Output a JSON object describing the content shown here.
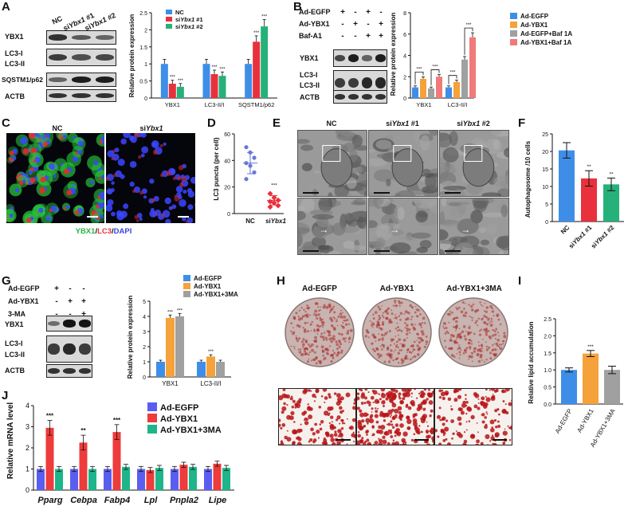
{
  "panels": {
    "A": {
      "label": "A",
      "lanes": [
        "NC",
        "siYbx1 #1",
        "siYbx1 #2"
      ],
      "lane_base": "si",
      "lane_gene": "Ybx1",
      "lane_suffix": [
        " #1",
        " #2"
      ],
      "proteins": [
        "YBX1",
        "LC3-I",
        "LC3-II",
        "SQSTM1/p62",
        "ACTB"
      ],
      "chart_data": {
        "type": "bar",
        "ylabel": "Relative protein expression",
        "ylim": [
          0,
          2.5
        ],
        "yticks": [
          0.0,
          0.5,
          1.0,
          1.5,
          2.0,
          2.5
        ],
        "categories": [
          "YBX1",
          "LC3-II/I",
          "SQSTM1/p62"
        ],
        "series": [
          {
            "name": "NC",
            "color": "#3e8ee8",
            "values": [
              1.0,
              1.0,
              1.0
            ]
          },
          {
            "name": "siYbx1 #1",
            "color": "#e8313c",
            "values": [
              0.42,
              0.7,
              1.65
            ]
          },
          {
            "name": "siYbx1 #2",
            "color": "#26b07a",
            "values": [
              0.33,
              0.65,
              2.1
            ]
          }
        ],
        "significance": [
          [
            "",
            "***",
            "***"
          ],
          [
            "",
            "***",
            "***"
          ],
          [
            "",
            "***",
            "***"
          ]
        ]
      }
    },
    "B": {
      "label": "B",
      "rows": [
        {
          "name": "Ad-EGFP",
          "marks": [
            "+",
            "-",
            "+",
            "-"
          ]
        },
        {
          "name": "Ad-YBX1",
          "marks": [
            "-",
            "+",
            "-",
            "+"
          ]
        },
        {
          "name": "Baf-A1",
          "marks": [
            "-",
            "-",
            "+",
            "+"
          ]
        }
      ],
      "proteins": [
        "YBX1",
        "LC3-I",
        "LC3-II",
        "ACTB"
      ],
      "chart_data": {
        "type": "bar",
        "ylabel": "Relative protein expression",
        "ylim": [
          0,
          8
        ],
        "yticks": [
          0,
          2,
          4,
          6,
          8
        ],
        "categories": [
          "YBX1",
          "LC3-II/I"
        ],
        "series": [
          {
            "name": "Ad-EGFP",
            "color": "#3e8ee8",
            "values": [
              1.0,
              1.0
            ]
          },
          {
            "name": "Ad-YBX1",
            "color": "#f5a23a",
            "values": [
              1.8,
              1.5
            ]
          },
          {
            "name": "Ad-EGFP+Baf 1A",
            "color": "#a0a0a0",
            "values": [
              0.9,
              3.6
            ]
          },
          {
            "name": "Ad-YBX1+Baf 1A",
            "color": "#f07a7a",
            "values": [
              2.0,
              5.7
            ]
          }
        ],
        "brackets": [
          "***",
          "***",
          "***",
          "***"
        ]
      }
    },
    "C": {
      "label": "C",
      "titles": [
        "NC",
        "siYbx1"
      ],
      "legend": {
        "green": "YBX1",
        "sep": "/",
        "red": "LC3",
        "blue": "DAPI"
      }
    },
    "D": {
      "label": "D",
      "chart_data": {
        "type": "scatter",
        "ylabel": "LC3 puncta (per cell)",
        "ylim": [
          0,
          60
        ],
        "yticks": [
          0,
          20,
          40,
          60
        ],
        "categories": [
          "NC",
          "siYbx1"
        ],
        "series": [
          {
            "name": "NC",
            "color": "#6a76d8",
            "values": [
              50,
              46,
              42,
              38,
              36,
              31,
              26
            ],
            "mean": 38,
            "sd": 8
          },
          {
            "name": "siYbx1",
            "color": "#e8313c",
            "values": [
              15,
              12,
              10,
              9,
              8,
              6,
              5
            ],
            "mean": 10,
            "sd": 3.5
          }
        ],
        "significance": "***"
      }
    },
    "E": {
      "label": "E",
      "titles": [
        "NC",
        "siYbx1 #1",
        "siYbx1 #2"
      ]
    },
    "F": {
      "label": "F",
      "chart_data": {
        "type": "bar",
        "ylabel": "Autophagosome /10 cells",
        "ylim": [
          0,
          25
        ],
        "yticks": [
          0,
          5,
          10,
          15,
          20,
          25
        ],
        "categories": [
          "NC",
          "siYbx1 #1",
          "siYbx1 #2"
        ],
        "series": [
          {
            "name": "Autophagosome",
            "values": [
              20.3,
              12.3,
              10.6
            ],
            "errors": [
              2.2,
              2.2,
              1.8
            ],
            "colors": [
              "#3e8ee8",
              "#e8313c",
              "#26b07a"
            ]
          }
        ],
        "significance": [
          "",
          "**",
          "**"
        ]
      }
    },
    "G": {
      "label": "G",
      "rows": [
        {
          "name": "Ad-EGFP",
          "marks": [
            "+",
            "-",
            "-"
          ]
        },
        {
          "name": "Ad-YBX1",
          "marks": [
            "-",
            "+",
            "+"
          ]
        },
        {
          "name": "3-MA",
          "marks": [
            "-",
            "-",
            "+"
          ]
        }
      ],
      "proteins": [
        "YBX1",
        "LC3-I",
        "LC3-II",
        "ACTB"
      ],
      "chart_data": {
        "type": "bar",
        "ylabel": "Relative protein expression",
        "ylim": [
          0,
          5
        ],
        "yticks": [
          0,
          1,
          2,
          3,
          4,
          5
        ],
        "categories": [
          "YBX1",
          "LC3-II/I"
        ],
        "series": [
          {
            "name": "Ad-EGFP",
            "color": "#3e8ee8",
            "values": [
              1.0,
              1.0
            ]
          },
          {
            "name": "Ad-YBX1",
            "color": "#f5a23a",
            "values": [
              3.9,
              1.35
            ]
          },
          {
            "name": "Ad-YBX1+3MA",
            "color": "#a0a0a0",
            "values": [
              4.0,
              1.0
            ]
          }
        ],
        "significance": [
          [
            "",
            "***",
            "***"
          ],
          [
            "",
            "***",
            ""
          ]
        ]
      }
    },
    "H": {
      "label": "H",
      "titles": [
        "Ad-EGFP",
        "Ad-YBX1",
        "Ad-YBX1+3MA"
      ]
    },
    "I": {
      "label": "I",
      "chart_data": {
        "type": "bar",
        "ylabel": "Relative lipid accumulation",
        "ylim": [
          0.0,
          2.5
        ],
        "yticks": [
          "0.0",
          "0.5",
          "1.0",
          "1.5",
          "2.0",
          "2.5"
        ],
        "categories": [
          "Ad-EGFP",
          "Ad-YBX1",
          "Ad-YBX1+3MA"
        ],
        "series": [
          {
            "name": "lipid",
            "values": [
              1.0,
              1.48,
              1.0
            ],
            "errors": [
              0.06,
              0.09,
              0.11
            ],
            "colors": [
              "#3e8ee8",
              "#f5a23a",
              "#a0a0a0"
            ]
          }
        ],
        "significance": [
          "",
          "***",
          ""
        ]
      }
    },
    "J": {
      "label": "J",
      "chart_data": {
        "type": "bar",
        "ylabel": "Relative mRNA level",
        "ylim": [
          0,
          4
        ],
        "yticks": [
          0,
          1,
          2,
          3,
          4
        ],
        "categories": [
          "Pparg",
          "Cebpa",
          "Fabp4",
          "Lpl",
          "Pnpla2",
          "Lipe"
        ],
        "series": [
          {
            "name": "Ad-EGFP",
            "color": "#5a5ef0",
            "values": [
              1.0,
              1.0,
              1.0,
              1.0,
              1.0,
              1.0
            ]
          },
          {
            "name": "Ad-YBX1",
            "color": "#ee3b3b",
            "values": [
              2.95,
              2.25,
              2.75,
              0.95,
              1.2,
              1.25
            ]
          },
          {
            "name": "Ad-YBX1+3MA",
            "color": "#1db589",
            "values": [
              1.0,
              1.0,
              1.1,
              1.05,
              1.1,
              1.05
            ]
          }
        ],
        "significance": [
          "***",
          "**",
          "***",
          "",
          "",
          ""
        ]
      }
    }
  }
}
